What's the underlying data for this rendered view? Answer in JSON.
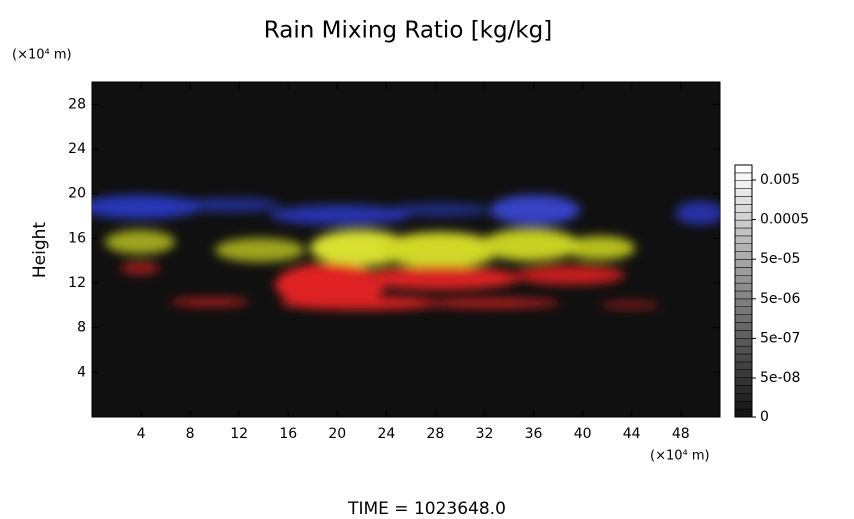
{
  "chart_data": {
    "type": "volume-render",
    "title": "Rain Mixing Ratio [kg/kg]",
    "ylabel": "Height",
    "xunit": "(×10⁴ m)",
    "yunit": "(×10⁴ m)",
    "footer": "TIME = 1023648.0",
    "xlim": [
      0,
      51.2
    ],
    "xticks": [
      4,
      8,
      12,
      16,
      20,
      24,
      28,
      32,
      36,
      40,
      44,
      48
    ],
    "ylim": [
      0,
      30
    ],
    "yticks": [
      4,
      8,
      12,
      16,
      20,
      24,
      28
    ],
    "colorbar": {
      "scale": "log",
      "ticks": [
        0,
        {
          "value": 5e-08,
          "label": "5e-08"
        },
        {
          "value": 5e-07,
          "label": "5e-07"
        },
        {
          "value": 5e-06,
          "label": "5e-06"
        },
        {
          "value": 5e-05,
          "label": "5e-05"
        },
        0.0005,
        0.005
      ]
    }
  }
}
